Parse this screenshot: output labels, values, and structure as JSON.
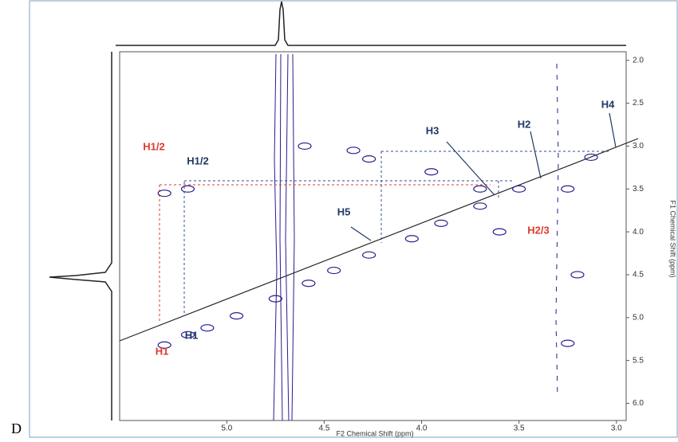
{
  "chart_data": {
    "type": "nmr2d",
    "panel_label": "D",
    "x_label": "F2 Chemical Shift (ppm)",
    "y_label": "F1 Chemical Shift (ppm)",
    "xlim": [
      5.55,
      2.95
    ],
    "ylim": [
      1.9,
      6.2
    ],
    "xticks": [
      {
        "value": 5,
        "label": "5.0"
      },
      4.5,
      {
        "value": 4,
        "label": "4.0"
      },
      3.5,
      {
        "value": 3,
        "label": "3.0"
      }
    ],
    "yticks": [
      {
        "value": 2,
        "label": "2.0"
      },
      2.5,
      {
        "value": 3,
        "label": "3.0"
      },
      3.5,
      {
        "value": 4,
        "label": "4.0"
      },
      4.5,
      {
        "value": 5,
        "label": "5.0"
      },
      5.5,
      {
        "value": 6,
        "label": "6.0"
      }
    ],
    "color": "#2b1b8f",
    "x": [
      5.32,
      5.2,
      5.1,
      4.95,
      4.75,
      4.58,
      4.45,
      4.27,
      4.05,
      3.9,
      3.7,
      3.5,
      3.13,
      5.32,
      5.2,
      4.27,
      3.7,
      4.6,
      4.35,
      3.95,
      3.25,
      3.2,
      3.25,
      3.6
    ],
    "values": [
      5.32,
      5.2,
      5.12,
      4.98,
      4.78,
      4.6,
      4.45,
      4.27,
      4.08,
      3.9,
      3.7,
      3.5,
      3.13,
      3.55,
      3.5,
      3.15,
      3.5,
      3.0,
      3.05,
      3.3,
      3.5,
      4.5,
      5.3,
      4.0
    ],
    "annotations": [
      {
        "text": "H1/2",
        "color": "#e03a2f"
      },
      {
        "text": "H1/2",
        "color": "#1f3864"
      },
      {
        "text": "H1",
        "color": "#e03a2f"
      },
      {
        "text": "H1",
        "color": "#1f3864"
      },
      {
        "text": "H3",
        "color": "#1f3864"
      },
      {
        "text": "H2",
        "color": "#1f3864"
      },
      {
        "text": "H4",
        "color": "#1f3864"
      },
      {
        "text": "H5",
        "color": "#1f3864"
      },
      {
        "text": "H2/3",
        "color": "#e03a2f"
      }
    ]
  }
}
